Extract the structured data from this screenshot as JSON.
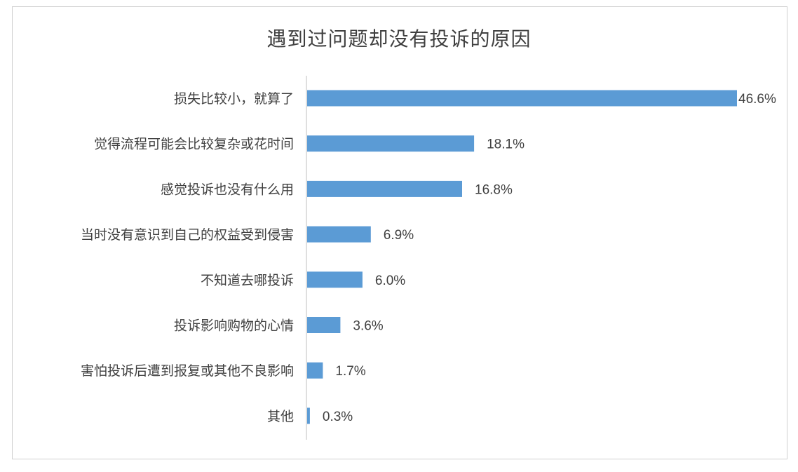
{
  "chart_data": {
    "type": "bar",
    "orientation": "horizontal",
    "title": "遇到过问题却没有投诉的原因",
    "categories": [
      "损失比较小，就算了",
      "觉得流程可能会比较复杂或花时间",
      "感觉投诉也没有什么用",
      "当时没有意识到自己的权益受到侵害",
      "不知道去哪投诉",
      "投诉影响购物的心情",
      "害怕投诉后遭到报复或其他不良影响",
      "其他"
    ],
    "values": [
      46.6,
      18.1,
      16.8,
      6.9,
      6.0,
      3.6,
      1.7,
      0.3
    ],
    "value_labels": [
      "46.6%",
      "18.1%",
      "16.8%",
      "6.9%",
      "6.0%",
      "3.6%",
      "1.7%",
      "0.3%"
    ],
    "xlim": [
      0,
      46.6
    ],
    "grid": false,
    "legend": "none",
    "bar_color": "#5b9bd5",
    "axis_color": "#bfbfbf"
  }
}
